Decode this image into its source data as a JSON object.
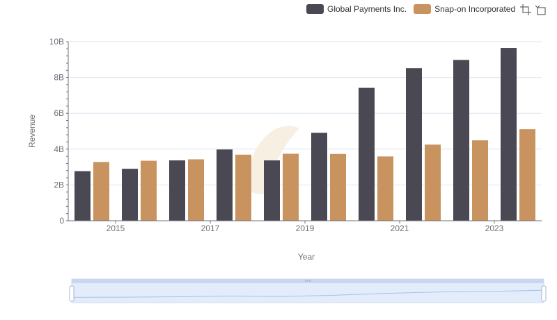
{
  "legend": {
    "items": [
      {
        "label": "Global Payments Inc.",
        "color": "#4a4953"
      },
      {
        "label": "Snap-on Incorporated",
        "color": "#c8935f"
      }
    ]
  },
  "toolbox": {
    "icons": [
      "zoom-icon",
      "restore-icon"
    ]
  },
  "chart_data": {
    "type": "bar",
    "categories": [
      "2014",
      "2015",
      "2016",
      "2017",
      "2018",
      "2019",
      "2020",
      "2021",
      "2022",
      "2023"
    ],
    "x_tick_labels": [
      "2015",
      "2017",
      "2019",
      "2021",
      "2023"
    ],
    "series": [
      {
        "name": "Global Payments Inc.",
        "color": "#4a4953",
        "values": [
          2.77,
          2.9,
          3.37,
          3.98,
          3.37,
          4.91,
          7.42,
          8.52,
          8.98,
          9.65
        ]
      },
      {
        "name": "Snap-on Incorporated",
        "color": "#c8935f",
        "values": [
          3.28,
          3.35,
          3.43,
          3.69,
          3.74,
          3.73,
          3.59,
          4.25,
          4.49,
          5.11
        ]
      }
    ],
    "y_ticks": [
      {
        "value": 0,
        "label": "0"
      },
      {
        "value": 2,
        "label": "2B"
      },
      {
        "value": 4,
        "label": "4B"
      },
      {
        "value": 6,
        "label": "6B"
      },
      {
        "value": 8,
        "label": "8B"
      },
      {
        "value": 10,
        "label": "10B"
      }
    ],
    "ylim": [
      0,
      10
    ],
    "unit": "billions",
    "xlabel": "Year",
    "ylabel": "Revenue",
    "grid": true,
    "legend_position": "top-right",
    "data_zoom": {
      "start": 0,
      "end": 100
    }
  }
}
